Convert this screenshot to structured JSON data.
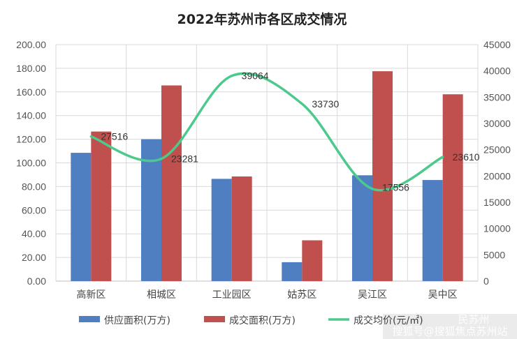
{
  "chart_data": {
    "type": "bar",
    "title": "2022年苏州市各区成交情况",
    "categories": [
      "高新区",
      "相城区",
      "工业园区",
      "姑苏区",
      "吴江区",
      "吴中区"
    ],
    "series": [
      {
        "name": "供应面积(万方)",
        "type": "bar",
        "axis": "left",
        "color": "#4F7EC1",
        "values": [
          108.5,
          120.0,
          86.5,
          16.0,
          89.5,
          85.5
        ]
      },
      {
        "name": "成交面积(万方)",
        "type": "bar",
        "axis": "left",
        "color": "#C0504D",
        "values": [
          126.5,
          165.5,
          88.5,
          34.5,
          177.5,
          158.0
        ]
      },
      {
        "name": "成交均价(元/㎡)",
        "type": "line",
        "axis": "right",
        "color": "#4CC98C",
        "smooth": true,
        "values": [
          27516,
          23281,
          39064,
          33730,
          17556,
          23610
        ],
        "labels": [
          "27516",
          "23281",
          "39064",
          "33730",
          "17556",
          "23610"
        ]
      }
    ],
    "y_left": {
      "range": [
        0,
        200
      ],
      "ticks": [
        "0.00",
        "20.00",
        "40.00",
        "60.00",
        "80.00",
        "100.00",
        "120.00",
        "140.00",
        "160.00",
        "180.00",
        "200.00"
      ]
    },
    "y_right": {
      "range": [
        0,
        45000
      ],
      "ticks": [
        "0",
        "5000",
        "10000",
        "15000",
        "20000",
        "25000",
        "30000",
        "35000",
        "40000",
        "45000"
      ]
    },
    "grid": true,
    "legend": "bottom"
  },
  "watermark": {
    "line1": "民苏州",
    "line2": "搜狐号@搜狐焦点苏州站"
  }
}
